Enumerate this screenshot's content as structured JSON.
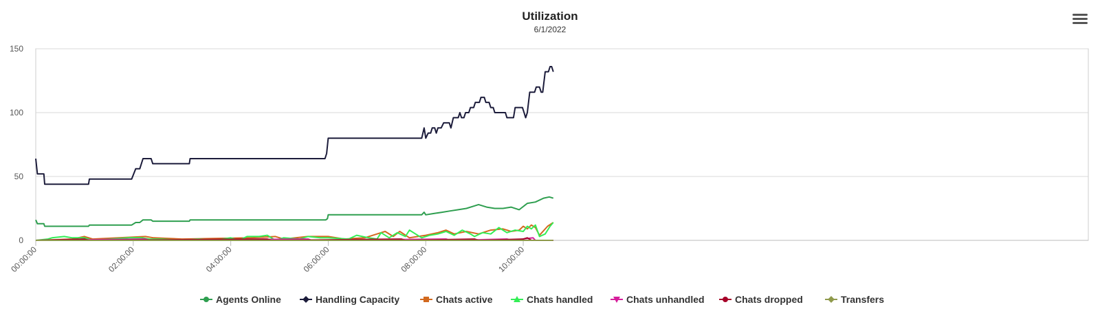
{
  "header": {
    "title": "Utilization",
    "subtitle": "6/1/2022"
  },
  "menu": {
    "icon": "hamburger-menu-icon"
  },
  "chart_data": {
    "type": "line",
    "title": "Utilization",
    "subtitle": "6/1/2022",
    "x_unit": "time",
    "x_range": [
      "00:00:00",
      "10:37:00"
    ],
    "x_tick_labels": [
      "00:00:00",
      "02:00:00",
      "04:00:00",
      "06:00:00",
      "08:00:00",
      "10:00:00"
    ],
    "ylim": [
      0,
      150
    ],
    "y_ticks": [
      0,
      50,
      100,
      150
    ],
    "grid": "horizontal",
    "legend_position": "bottom",
    "series": [
      {
        "name": "Agents Online",
        "color": "#2e9e4f",
        "marker": "circle",
        "points": [
          [
            "00:00:00",
            16
          ],
          [
            "00:02:00",
            13
          ],
          [
            "00:10:00",
            13
          ],
          [
            "00:11:00",
            11
          ],
          [
            "01:05:00",
            11
          ],
          [
            "01:06:00",
            12
          ],
          [
            "01:58:00",
            12
          ],
          [
            "02:03:00",
            14
          ],
          [
            "02:08:00",
            14
          ],
          [
            "02:12:00",
            16
          ],
          [
            "02:22:00",
            16
          ],
          [
            "02:24:00",
            15
          ],
          [
            "03:09:00",
            15
          ],
          [
            "03:10:00",
            16
          ],
          [
            "05:57:00",
            16
          ],
          [
            "05:59:00",
            17
          ],
          [
            "06:00:00",
            20
          ],
          [
            "07:55:00",
            20
          ],
          [
            "07:58:00",
            22
          ],
          [
            "08:00:00",
            20
          ],
          [
            "08:10:00",
            21
          ],
          [
            "08:20:00",
            22
          ],
          [
            "08:30:00",
            23
          ],
          [
            "08:40:00",
            24
          ],
          [
            "08:50:00",
            25
          ],
          [
            "09:00:00",
            27
          ],
          [
            "09:05:00",
            28
          ],
          [
            "09:15:00",
            26
          ],
          [
            "09:25:00",
            25
          ],
          [
            "09:35:00",
            25
          ],
          [
            "09:45:00",
            26
          ],
          [
            "09:55:00",
            24
          ],
          [
            "10:05:00",
            29
          ],
          [
            "10:15:00",
            30
          ],
          [
            "10:25:00",
            33
          ],
          [
            "10:32:00",
            34
          ],
          [
            "10:37:00",
            33
          ]
        ]
      },
      {
        "name": "Handling Capacity",
        "color": "#1b1b3a",
        "marker": "diamond",
        "points": [
          [
            "00:00:00",
            64
          ],
          [
            "00:02:00",
            52
          ],
          [
            "00:10:00",
            52
          ],
          [
            "00:11:00",
            44
          ],
          [
            "01:05:00",
            44
          ],
          [
            "01:06:00",
            48
          ],
          [
            "01:58:00",
            48
          ],
          [
            "02:03:00",
            56
          ],
          [
            "02:08:00",
            56
          ],
          [
            "02:12:00",
            64
          ],
          [
            "02:22:00",
            64
          ],
          [
            "02:24:00",
            60
          ],
          [
            "03:09:00",
            60
          ],
          [
            "03:10:00",
            64
          ],
          [
            "05:56:00",
            64
          ],
          [
            "05:58:00",
            68
          ],
          [
            "06:00:00",
            80
          ],
          [
            "07:55:00",
            80
          ],
          [
            "07:58:00",
            88
          ],
          [
            "08:00:00",
            80
          ],
          [
            "08:03:00",
            84
          ],
          [
            "08:06:00",
            84
          ],
          [
            "08:08:00",
            88
          ],
          [
            "08:11:00",
            88
          ],
          [
            "08:13:00",
            84
          ],
          [
            "08:15:00",
            88
          ],
          [
            "08:19:00",
            88
          ],
          [
            "08:22:00",
            92
          ],
          [
            "08:29:00",
            92
          ],
          [
            "08:31:00",
            88
          ],
          [
            "08:34:00",
            96
          ],
          [
            "08:40:00",
            96
          ],
          [
            "08:42:00",
            100
          ],
          [
            "08:44:00",
            96
          ],
          [
            "08:47:00",
            96
          ],
          [
            "08:49:00",
            100
          ],
          [
            "08:53:00",
            100
          ],
          [
            "08:55:00",
            104
          ],
          [
            "08:59:00",
            104
          ],
          [
            "09:01:00",
            108
          ],
          [
            "09:06:00",
            108
          ],
          [
            "09:08:00",
            112
          ],
          [
            "09:12:00",
            112
          ],
          [
            "09:14:00",
            108
          ],
          [
            "09:18:00",
            108
          ],
          [
            "09:20:00",
            104
          ],
          [
            "09:23:00",
            104
          ],
          [
            "09:25:00",
            100
          ],
          [
            "09:38:00",
            100
          ],
          [
            "09:40:00",
            96
          ],
          [
            "09:48:00",
            96
          ],
          [
            "09:50:00",
            104
          ],
          [
            "09:59:00",
            104
          ],
          [
            "10:01:00",
            100
          ],
          [
            "10:03:00",
            96
          ],
          [
            "10:05:00",
            100
          ],
          [
            "10:08:00",
            116
          ],
          [
            "10:14:00",
            116
          ],
          [
            "10:16:00",
            120
          ],
          [
            "10:20:00",
            120
          ],
          [
            "10:22:00",
            116
          ],
          [
            "10:24:00",
            116
          ],
          [
            "10:27:00",
            132
          ],
          [
            "10:31:00",
            132
          ],
          [
            "10:33:00",
            136
          ],
          [
            "10:35:00",
            136
          ],
          [
            "10:37:00",
            132
          ]
        ]
      },
      {
        "name": "Chats active",
        "color": "#d2691e",
        "marker": "square",
        "points": [
          [
            "00:00:00",
            0
          ],
          [
            "00:45:00",
            1
          ],
          [
            "01:00:00",
            3
          ],
          [
            "01:10:00",
            1
          ],
          [
            "02:15:00",
            3
          ],
          [
            "02:25:00",
            2
          ],
          [
            "03:00:00",
            1
          ],
          [
            "04:25:00",
            2
          ],
          [
            "04:55:00",
            3
          ],
          [
            "05:05:00",
            1
          ],
          [
            "05:35:00",
            3
          ],
          [
            "06:00:00",
            3
          ],
          [
            "06:20:00",
            1
          ],
          [
            "06:45:00",
            2
          ],
          [
            "07:00:00",
            5
          ],
          [
            "07:10:00",
            7
          ],
          [
            "07:20:00",
            3
          ],
          [
            "07:28:00",
            7
          ],
          [
            "07:40:00",
            2
          ],
          [
            "08:00:00",
            4
          ],
          [
            "08:15:00",
            6
          ],
          [
            "08:25:00",
            8
          ],
          [
            "08:35:00",
            5
          ],
          [
            "08:50:00",
            7
          ],
          [
            "09:05:00",
            5
          ],
          [
            "09:20:00",
            8
          ],
          [
            "09:35:00",
            9
          ],
          [
            "09:45:00",
            7
          ],
          [
            "09:55:00",
            8
          ],
          [
            "10:00:00",
            11
          ],
          [
            "10:05:00",
            9
          ],
          [
            "10:10:00",
            12
          ],
          [
            "10:15:00",
            10
          ],
          [
            "10:20:00",
            4
          ],
          [
            "10:30:00",
            11
          ],
          [
            "10:37:00",
            14
          ]
        ]
      },
      {
        "name": "Chats handled",
        "color": "#33ee55",
        "marker": "triangle",
        "points": [
          [
            "00:00:00",
            0
          ],
          [
            "00:15:00",
            1
          ],
          [
            "00:20:00",
            2
          ],
          [
            "00:35:00",
            3
          ],
          [
            "00:45:00",
            2
          ],
          [
            "01:00:00",
            2
          ],
          [
            "01:10:00",
            0
          ],
          [
            "01:55:00",
            2
          ],
          [
            "02:10:00",
            2
          ],
          [
            "02:20:00",
            1
          ],
          [
            "02:35:00",
            1
          ],
          [
            "03:00:00",
            0
          ],
          [
            "03:20:00",
            1
          ],
          [
            "03:40:00",
            0
          ],
          [
            "04:00:00",
            2
          ],
          [
            "04:10:00",
            0
          ],
          [
            "04:20:00",
            3
          ],
          [
            "04:35:00",
            3
          ],
          [
            "04:45:00",
            4
          ],
          [
            "04:55:00",
            0
          ],
          [
            "05:05:00",
            2
          ],
          [
            "05:25:00",
            1
          ],
          [
            "05:35:00",
            3
          ],
          [
            "05:50:00",
            2
          ],
          [
            "06:00:00",
            2
          ],
          [
            "06:25:00",
            1
          ],
          [
            "06:35:00",
            4
          ],
          [
            "06:50:00",
            2
          ],
          [
            "07:00:00",
            1
          ],
          [
            "07:05:00",
            6
          ],
          [
            "07:15:00",
            2
          ],
          [
            "07:25:00",
            6
          ],
          [
            "07:35:00",
            3
          ],
          [
            "07:40:00",
            8
          ],
          [
            "07:55:00",
            2
          ],
          [
            "08:05:00",
            4
          ],
          [
            "08:15:00",
            5
          ],
          [
            "08:25:00",
            7
          ],
          [
            "08:35:00",
            4
          ],
          [
            "08:45:00",
            8
          ],
          [
            "08:55:00",
            5
          ],
          [
            "09:00:00",
            3
          ],
          [
            "09:10:00",
            6
          ],
          [
            "09:20:00",
            5
          ],
          [
            "09:30:00",
            10
          ],
          [
            "09:40:00",
            6
          ],
          [
            "09:50:00",
            8
          ],
          [
            "10:00:00",
            7
          ],
          [
            "10:05:00",
            11
          ],
          [
            "10:10:00",
            9
          ],
          [
            "10:15:00",
            12
          ],
          [
            "10:20:00",
            3
          ],
          [
            "10:27:00",
            5
          ],
          [
            "10:33:00",
            11
          ],
          [
            "10:37:00",
            14
          ]
        ]
      },
      {
        "name": "Chats unhandled",
        "color": "#d61d9b",
        "marker": "triangle-down",
        "points": [
          [
            "00:00:00",
            0
          ],
          [
            "02:15:00",
            1
          ],
          [
            "02:20:00",
            0
          ],
          [
            "05:35:00",
            1
          ],
          [
            "05:40:00",
            0
          ],
          [
            "08:25:00",
            1
          ],
          [
            "08:30:00",
            0
          ],
          [
            "09:40:00",
            1
          ],
          [
            "09:45:00",
            0
          ],
          [
            "10:12:00",
            2
          ],
          [
            "10:15:00",
            0
          ],
          [
            "10:37:00",
            0
          ]
        ]
      },
      {
        "name": "Chats dropped",
        "color": "#a60028",
        "marker": "circle",
        "points": [
          [
            "00:00:00",
            0
          ],
          [
            "01:00:00",
            1
          ],
          [
            "01:05:00",
            0
          ],
          [
            "04:45:00",
            1
          ],
          [
            "04:50:00",
            0
          ],
          [
            "07:30:00",
            1
          ],
          [
            "07:35:00",
            0
          ],
          [
            "09:00:00",
            1
          ],
          [
            "09:05:00",
            0
          ],
          [
            "10:00:00",
            1
          ],
          [
            "10:05:00",
            2
          ],
          [
            "10:10:00",
            0
          ],
          [
            "10:37:00",
            0
          ]
        ]
      },
      {
        "name": "Transfers",
        "color": "#8f9a4c",
        "marker": "diamond",
        "points": [
          [
            "00:00:00",
            0
          ],
          [
            "10:37:00",
            0
          ]
        ]
      }
    ]
  }
}
